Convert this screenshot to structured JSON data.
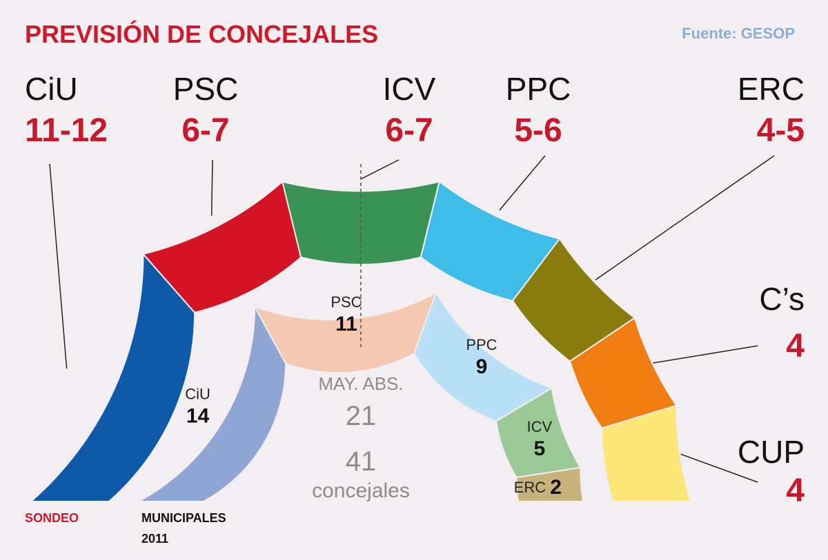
{
  "title": "PREVISIÓN DE CONCEJALES",
  "source": "Fuente: GESOP",
  "colors": {
    "title": "#cc1a2b",
    "seats": "#c61a2a",
    "source": "#8aaed6",
    "leader": "#222222"
  },
  "labels": {
    "sondeo": "SONDEO",
    "municipales_line1": "MUNICIPALES",
    "municipales_line2": "2011"
  },
  "center": {
    "majority_label": "MAY. ABS.",
    "majority_value": "21",
    "total_value": "41",
    "total_label": "concejales"
  },
  "chart_data": [
    {
      "type": "pie",
      "subtype": "semicircle-parliament",
      "name": "SONDEO",
      "total_seats": 41,
      "absolute_majority": 21,
      "parties": [
        {
          "party": "CiU",
          "range": "11-12",
          "low": 11,
          "high": 12,
          "color": "#0f5aa8"
        },
        {
          "party": "PSC",
          "range": "6-7",
          "low": 6,
          "high": 7,
          "color": "#d41426"
        },
        {
          "party": "ICV",
          "range": "6-7",
          "low": 6,
          "high": 7,
          "color": "#3a9255"
        },
        {
          "party": "PPC",
          "range": "5-6",
          "low": 5,
          "high": 6,
          "color": "#3ebde9"
        },
        {
          "party": "ERC",
          "range": "4-5",
          "low": 4,
          "high": 5,
          "color": "#8a7b0e"
        },
        {
          "party": "C’s",
          "range": "4",
          "low": 4,
          "high": 4,
          "color": "#ef7d11"
        },
        {
          "party": "CUP",
          "range": "4",
          "low": 4,
          "high": 4,
          "color": "#fde678"
        }
      ]
    },
    {
      "type": "pie",
      "subtype": "semicircle-parliament",
      "name": "MUNICIPALES 2011",
      "total_seats": 41,
      "parties": [
        {
          "party": "CiU",
          "seats": 14,
          "color": "#8fa6d5"
        },
        {
          "party": "PSC",
          "seats": 11,
          "color": "#f5c8b2"
        },
        {
          "party": "PPC",
          "seats": 9,
          "color": "#b9e0f6"
        },
        {
          "party": "ICV",
          "seats": 5,
          "color": "#9cc998"
        },
        {
          "party": "ERC",
          "seats": 2,
          "color": "#c6b27a"
        }
      ]
    }
  ]
}
